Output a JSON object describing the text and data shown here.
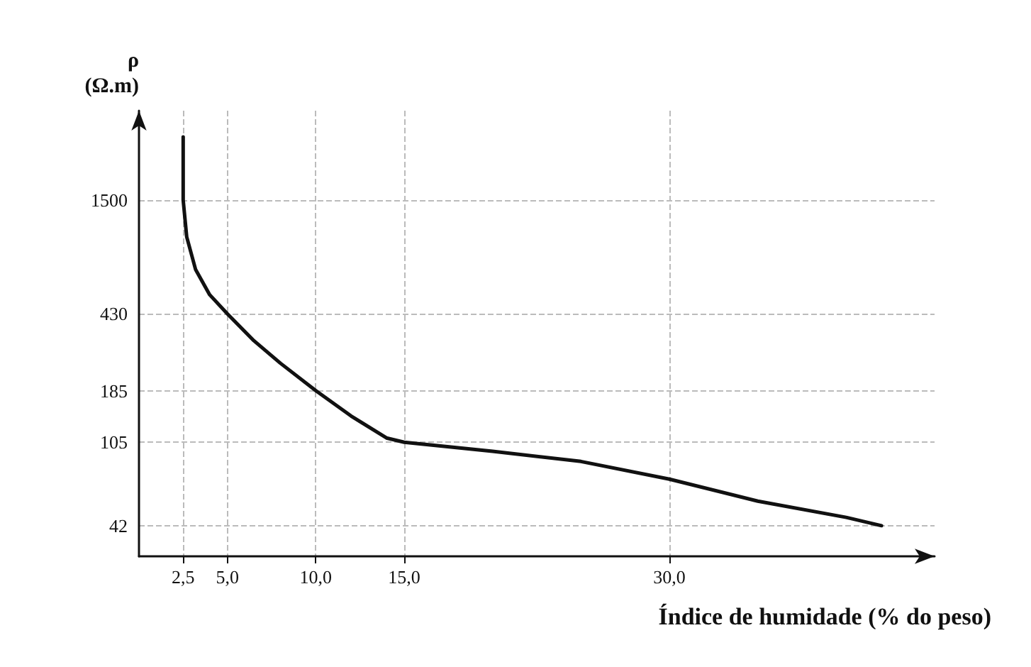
{
  "chart_data": {
    "type": "line",
    "xlabel": "Índice de humidade (% do peso)",
    "ylabel": "ρ\n(Ω.m)",
    "x": [
      2.5,
      2.5,
      2.7,
      3.2,
      4,
      5,
      6.5,
      8,
      10,
      12,
      14,
      15,
      20,
      25,
      30,
      35,
      40,
      42
    ],
    "values": [
      3000,
      1500,
      1000,
      700,
      530,
      430,
      320,
      250,
      185,
      140,
      110,
      105,
      95,
      85,
      70,
      55,
      46,
      42
    ],
    "color": "#111111",
    "marker": "none",
    "line_style": "solid",
    "log": "y",
    "grid": true,
    "xlim": [
      0,
      45
    ],
    "xticks": [
      {
        "value": 2.5,
        "label": "2,5"
      },
      {
        "value": 5,
        "label": "5,0"
      },
      {
        "value": 10,
        "label": "10,0"
      },
      {
        "value": 15,
        "label": "15,0"
      },
      {
        "value": 30,
        "label": "30,0"
      }
    ],
    "ylim": [
      30,
      4000
    ],
    "yticks": [
      42,
      105,
      185,
      430,
      1500
    ]
  }
}
